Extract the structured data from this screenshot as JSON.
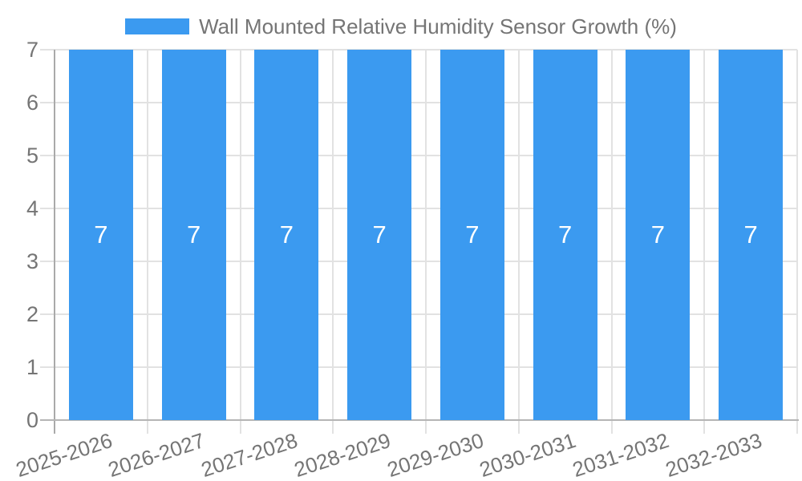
{
  "chart_data": {
    "type": "bar",
    "title": "Wall Mounted Relative Humidity Sensor Growth (%)",
    "categories": [
      "2025-2026",
      "2026-2027",
      "2027-2028",
      "2028-2029",
      "2029-2030",
      "2030-2031",
      "2031-2032",
      "2032-2033"
    ],
    "series": [
      {
        "name": "Wall Mounted Relative Humidity Sensor Growth (%)",
        "values": [
          7,
          7,
          7,
          7,
          7,
          7,
          7,
          7
        ]
      }
    ],
    "bar_value_labels": [
      "7",
      "7",
      "7",
      "7",
      "7",
      "7",
      "7",
      "7"
    ],
    "xlabel": "",
    "ylabel": "",
    "ylim": [
      0,
      7
    ],
    "yticks": [
      0,
      1,
      2,
      3,
      4,
      5,
      6,
      7
    ],
    "grid": true,
    "legend_position": "top",
    "colors": {
      "bar": "#3B9AF0",
      "value_label": "#FFFFFF",
      "axis_text": "#757575",
      "legend_text": "#757575",
      "gridline": "#E2E2E2",
      "y_axis_line": "#AAAAAA",
      "x_axis_line": "#B5B5B5"
    }
  }
}
